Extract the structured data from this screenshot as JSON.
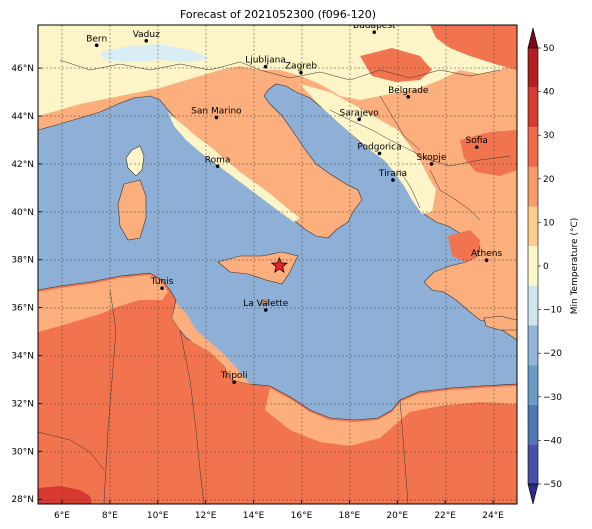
{
  "title": "Forecast of 2021052300 (f096-120)",
  "lon_ticks": [
    "6°E",
    "8°E",
    "10°E",
    "12°E",
    "14°E",
    "16°E",
    "18°E",
    "20°E",
    "22°E",
    "24°E"
  ],
  "lat_ticks": [
    "46°N",
    "44°N",
    "42°N",
    "40°N",
    "38°N",
    "36°N",
    "34°N",
    "32°N",
    "30°N",
    "28°N"
  ],
  "cities": [
    {
      "name": "Bern",
      "lon": 7.45,
      "lat": 46.95
    },
    {
      "name": "Vaduz",
      "lon": 9.52,
      "lat": 47.14
    },
    {
      "name": "Budapest",
      "lon": 19.04,
      "lat": 47.5
    },
    {
      "name": "Ljubljana",
      "lon": 14.5,
      "lat": 46.06
    },
    {
      "name": "Zagreb",
      "lon": 15.98,
      "lat": 45.81
    },
    {
      "name": "San Marino",
      "lon": 12.45,
      "lat": 43.94
    },
    {
      "name": "Belgrade",
      "lon": 20.46,
      "lat": 44.8
    },
    {
      "name": "Sarajevo",
      "lon": 18.41,
      "lat": 43.86
    },
    {
      "name": "Sofia",
      "lon": 23.32,
      "lat": 42.7
    },
    {
      "name": "Roma",
      "lon": 12.5,
      "lat": 41.9
    },
    {
      "name": "Podgorica",
      "lon": 19.26,
      "lat": 42.44
    },
    {
      "name": "Skopje",
      "lon": 21.43,
      "lat": 42.0
    },
    {
      "name": "Tirana",
      "lon": 19.82,
      "lat": 41.33
    },
    {
      "name": "Athens",
      "lon": 23.73,
      "lat": 37.98
    },
    {
      "name": "Tunis",
      "lon": 10.18,
      "lat": 36.81
    },
    {
      "name": "La Valette",
      "lon": 14.51,
      "lat": 35.9
    },
    {
      "name": "Tripoli",
      "lon": 13.19,
      "lat": 32.89
    }
  ],
  "marker": {
    "symbol": "red-star",
    "lon": 15.08,
    "lat": 37.75
  },
  "colorbar": {
    "label": "Min Temperature (°C)",
    "ticks": [
      "50",
      "40",
      "30",
      "20",
      "10",
      "0",
      "−10",
      "−20",
      "−30",
      "−40",
      "−50"
    ],
    "range": [
      -50,
      50
    ],
    "colors": [
      "#2b2c89",
      "#4a4fa8",
      "#4e78b4",
      "#6a9cc8",
      "#90b5d7",
      "#cfe6ef",
      "#fdf8cc",
      "#fdcd8e",
      "#f89c6a",
      "#ef6a4a",
      "#d73a30",
      "#b41e24",
      "#7a0a1a"
    ]
  },
  "field_colors": {
    "sea": "#8fb0d6",
    "below_10": "#fdf4c7",
    "10_to_20": "#fcae7d",
    "20_to_30": "#f2744e",
    "30_to_40": "#d83a32",
    "cold": "#d9eef4"
  }
}
